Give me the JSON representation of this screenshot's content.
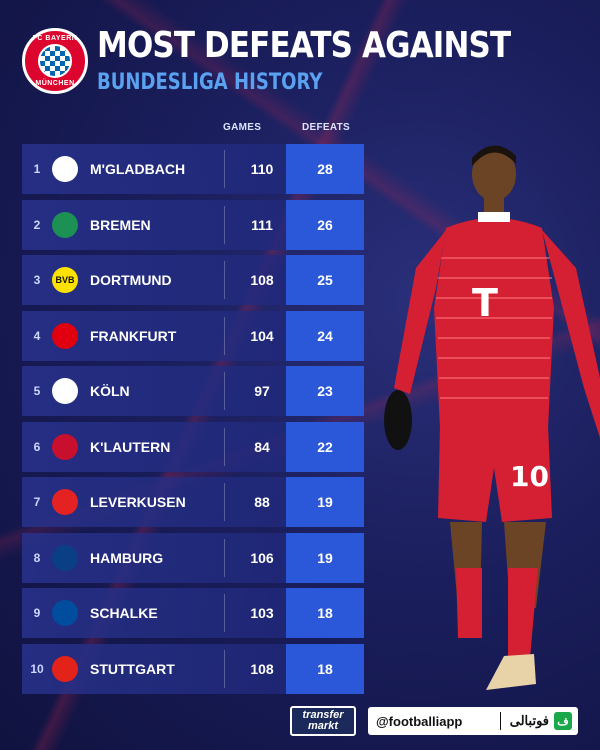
{
  "header": {
    "title": "MOST DEFEATS AGAINST",
    "subtitle": "BUNDESLIGA HISTORY",
    "logo_top": "FC BAYERN",
    "logo_bottom": "MÜNCHEN"
  },
  "columns": {
    "games": "GAMES",
    "defeats": "DEFEATS"
  },
  "rows": [
    {
      "rank": "1",
      "team": "M'GLADBACH",
      "games": "110",
      "defeats": "28",
      "badge_color": "#ffffff",
      "badge_label": ""
    },
    {
      "rank": "2",
      "team": "BREMEN",
      "games": "111",
      "defeats": "26",
      "badge_color": "#1d9053",
      "badge_label": ""
    },
    {
      "rank": "3",
      "team": "DORTMUND",
      "games": "108",
      "defeats": "25",
      "badge_color": "#fde100",
      "badge_label": "BVB"
    },
    {
      "rank": "4",
      "team": "FRANKFURT",
      "games": "104",
      "defeats": "24",
      "badge_color": "#e1000f",
      "badge_label": ""
    },
    {
      "rank": "5",
      "team": "KÖLN",
      "games": "97",
      "defeats": "23",
      "badge_color": "#ffffff",
      "badge_label": ""
    },
    {
      "rank": "6",
      "team": "K'LAUTERN",
      "games": "84",
      "defeats": "22",
      "badge_color": "#c8102e",
      "badge_label": ""
    },
    {
      "rank": "7",
      "team": "LEVERKUSEN",
      "games": "88",
      "defeats": "19",
      "badge_color": "#e32221",
      "badge_label": ""
    },
    {
      "rank": "8",
      "team": "HAMBURG",
      "games": "106",
      "defeats": "19",
      "badge_color": "#0a3f86",
      "badge_label": ""
    },
    {
      "rank": "9",
      "team": "SCHALKE",
      "games": "103",
      "defeats": "18",
      "badge_color": "#004d9d",
      "badge_label": ""
    },
    {
      "rank": "10",
      "team": "STUTTGART",
      "games": "108",
      "defeats": "18",
      "badge_color": "#e32219",
      "badge_label": ""
    }
  ],
  "footer": {
    "tm_top": "transfer",
    "tm_bottom": "markt",
    "handle": "@footballiapp",
    "brand": "فوتبالی",
    "brand_icon": "ف"
  },
  "player": {
    "shirt_number": "10",
    "sponsor": "T"
  }
}
